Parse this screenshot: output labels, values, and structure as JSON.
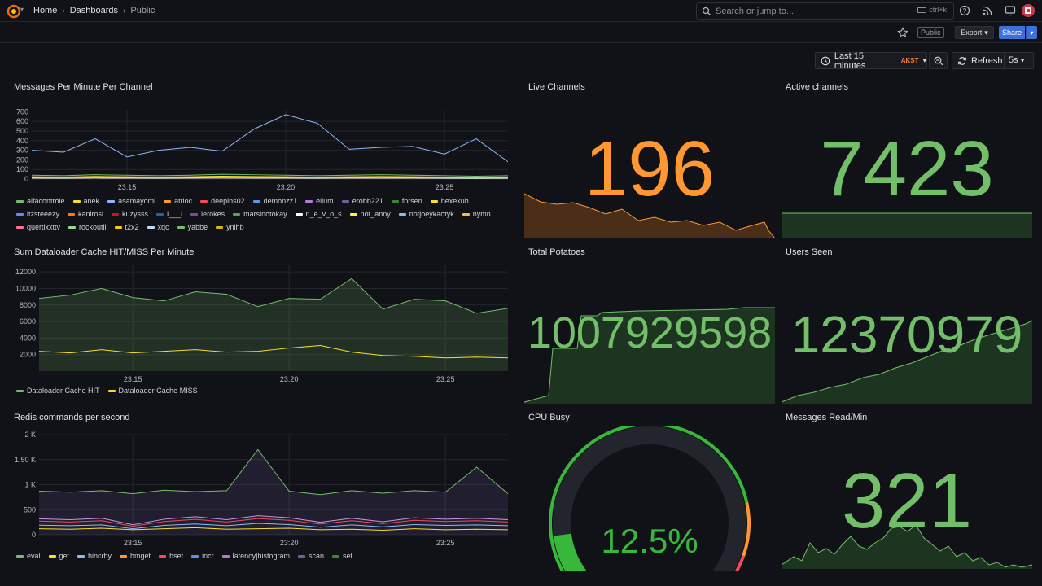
{
  "nav": {
    "crumbs": [
      "Home",
      "Dashboards",
      "Public"
    ],
    "search_placeholder": "Search or jump to...",
    "search_shortcut": "ctrl+k"
  },
  "toolbar": {
    "public_badge": "Public",
    "export_label": "Export",
    "share_label": "Share",
    "time_range": "Last 15 minutes",
    "timezone": "AKST",
    "refresh_label": "Refresh",
    "refresh_interval": "5s"
  },
  "colors": {
    "green": "#73bf69",
    "orange": "#ff9830",
    "yellow": "#fade2a",
    "blue": "#8ab8ff",
    "purple": "#ca95e5"
  },
  "panels": {
    "messages": {
      "title": "Messages Per Minute Per Channel",
      "yticks": [
        "700",
        "600",
        "500",
        "400",
        "300",
        "200",
        "100",
        "0"
      ],
      "xticks": [
        "23:15",
        "23:20",
        "23:25"
      ],
      "legend": [
        {
          "name": "alfacontrole",
          "color": "#73bf69"
        },
        {
          "name": "anek",
          "color": "#fade2a"
        },
        {
          "name": "asamayomi",
          "color": "#8ab8ff"
        },
        {
          "name": "atrioc",
          "color": "#ff9830"
        },
        {
          "name": "deepins02",
          "color": "#f2495c"
        },
        {
          "name": "demonzz1",
          "color": "#5794f2"
        },
        {
          "name": "ellum",
          "color": "#b877d9"
        },
        {
          "name": "erobb221",
          "color": "#705da0"
        },
        {
          "name": "forsen",
          "color": "#37872d"
        },
        {
          "name": "hexekuh",
          "color": "#fade2a"
        },
        {
          "name": "itzsteeezy",
          "color": "#5794f2"
        },
        {
          "name": "kanirosi",
          "color": "#ff780a"
        },
        {
          "name": "kuzysss",
          "color": "#c4162a"
        },
        {
          "name": "l___l",
          "color": "#1f60c4"
        },
        {
          "name": "lerokes",
          "color": "#8f3bb8"
        },
        {
          "name": "marsinotokay",
          "color": "#56a64b"
        },
        {
          "name": "n_e_v_o_s",
          "color": "#ffffff"
        },
        {
          "name": "not_anny",
          "color": "#ffee52"
        },
        {
          "name": "notjoeykaotyk",
          "color": "#8ab8ff"
        },
        {
          "name": "nymn",
          "color": "#ffb357"
        },
        {
          "name": "quertixxttv",
          "color": "#ff7383"
        },
        {
          "name": "rockoutli",
          "color": "#96d98d"
        },
        {
          "name": "t2x2",
          "color": "#f2cc0c"
        },
        {
          "name": "xqc",
          "color": "#c0d8ff"
        },
        {
          "name": "yabbe",
          "color": "#73bf69"
        },
        {
          "name": "ynihb",
          "color": "#e0b400"
        }
      ]
    },
    "live_channels": {
      "title": "Live Channels",
      "value": "196"
    },
    "active_channels": {
      "title": "Active channels",
      "value": "7423"
    },
    "cache": {
      "title": "Sum Dataloader Cache HIT/MISS Per Minute",
      "yticks": [
        "12000",
        "10000",
        "8000",
        "6000",
        "4000",
        "2000"
      ],
      "xticks": [
        "23:15",
        "23:20",
        "23:25"
      ],
      "legend": [
        {
          "name": "Dataloader Cache HIT",
          "color": "#73bf69"
        },
        {
          "name": "Dataloader Cache MISS",
          "color": "#fade2a"
        }
      ]
    },
    "potatoes": {
      "title": "Total Potatoes",
      "value": "1007929598"
    },
    "users_seen": {
      "title": "Users Seen",
      "value": "12370979"
    },
    "redis": {
      "title": "Redis commands per second",
      "yticks": [
        "2 K",
        "1.50 K",
        "1 K",
        "500",
        "0"
      ],
      "xticks": [
        "23:15",
        "23:20",
        "23:25"
      ],
      "legend": [
        {
          "name": "eval",
          "color": "#73bf69"
        },
        {
          "name": "get",
          "color": "#fade2a"
        },
        {
          "name": "hincrby",
          "color": "#8ab8ff"
        },
        {
          "name": "hmget",
          "color": "#ff9830"
        },
        {
          "name": "hset",
          "color": "#f2495c"
        },
        {
          "name": "incr",
          "color": "#5794f2"
        },
        {
          "name": "latency|histogram",
          "color": "#b877d9"
        },
        {
          "name": "scan",
          "color": "#705da0"
        },
        {
          "name": "set",
          "color": "#37872d"
        }
      ]
    },
    "cpu": {
      "title": "CPU Busy",
      "value": "12.5%",
      "percent": 12.5
    },
    "messages_read": {
      "title": "Messages Read/Min",
      "value": "321"
    }
  },
  "chart_data": [
    {
      "type": "line",
      "title": "Messages Per Minute Per Channel",
      "x": [
        "23:12",
        "23:13",
        "23:14",
        "23:15",
        "23:16",
        "23:17",
        "23:18",
        "23:19",
        "23:20",
        "23:21",
        "23:22",
        "23:23",
        "23:24",
        "23:25",
        "23:26",
        "23:27"
      ],
      "series": [
        {
          "name": "asamayomi",
          "values": [
            300,
            280,
            420,
            230,
            300,
            330,
            290,
            520,
            670,
            580,
            310,
            330,
            340,
            260,
            420,
            180
          ]
        },
        {
          "name": "alfacontrole",
          "values": [
            40,
            35,
            45,
            40,
            35,
            40,
            50,
            45,
            40,
            35,
            40,
            45,
            40,
            35,
            30,
            35
          ]
        }
      ],
      "ylim": [
        0,
        700
      ]
    },
    {
      "type": "area",
      "title": "Sum Dataloader Cache HIT/MISS Per Minute",
      "x": [
        "23:12",
        "23:13",
        "23:14",
        "23:15",
        "23:16",
        "23:17",
        "23:18",
        "23:19",
        "23:20",
        "23:21",
        "23:22",
        "23:23",
        "23:24",
        "23:25",
        "23:26",
        "23:27"
      ],
      "series": [
        {
          "name": "Dataloader Cache HIT",
          "values": [
            8800,
            9200,
            10000,
            8900,
            8500,
            9600,
            9300,
            7800,
            8800,
            8700,
            11200,
            7500,
            8700,
            8500,
            7000,
            7600
          ]
        },
        {
          "name": "Dataloader Cache MISS",
          "values": [
            2400,
            2200,
            2600,
            2200,
            2400,
            2600,
            2300,
            2400,
            2800,
            3100,
            2300,
            1900,
            1800,
            1600,
            1700,
            1600
          ]
        }
      ],
      "ylim": [
        0,
        12000
      ]
    },
    {
      "type": "area",
      "title": "Redis commands per second",
      "x": [
        "23:12",
        "23:13",
        "23:14",
        "23:15",
        "23:16",
        "23:17",
        "23:18",
        "23:19",
        "23:20",
        "23:21",
        "23:22",
        "23:23",
        "23:24",
        "23:25",
        "23:26",
        "23:27"
      ],
      "series": [
        {
          "name": "eval",
          "values": [
            870,
            850,
            880,
            820,
            890,
            860,
            880,
            1700,
            870,
            800,
            880,
            830,
            880,
            850,
            1350,
            820
          ]
        },
        {
          "name": "latency|histogram",
          "values": [
            320,
            300,
            330,
            200,
            310,
            360,
            300,
            380,
            340,
            250,
            330,
            260,
            340,
            310,
            330,
            300
          ]
        },
        {
          "name": "get",
          "values": [
            120,
            110,
            130,
            100,
            120,
            140,
            110,
            120,
            130,
            100,
            110,
            90,
            120,
            100,
            110,
            100
          ]
        }
      ],
      "ylim": [
        0,
        2000
      ]
    }
  ]
}
